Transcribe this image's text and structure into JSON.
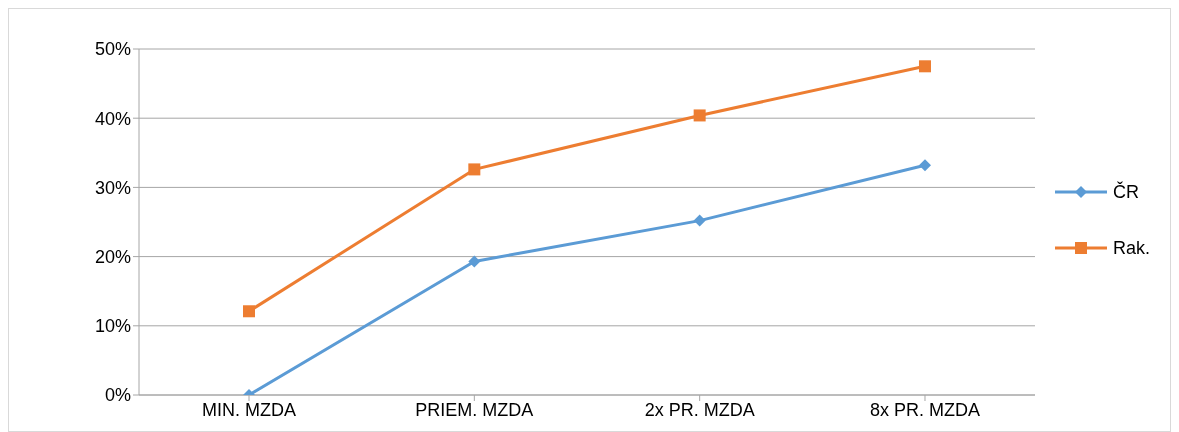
{
  "chart_data": {
    "type": "line",
    "categories": [
      "MIN. MZDA",
      "PRIEM. MZDA",
      "2x PR. MZDA",
      "8x PR. MZDA"
    ],
    "series": [
      {
        "name": "ČR",
        "color": "#5b9bd5",
        "marker": "diamond",
        "values": [
          0,
          19.3,
          25.2,
          33.2
        ]
      },
      {
        "name": "Rak.",
        "color": "#ed7d31",
        "marker": "square",
        "values": [
          12.1,
          32.6,
          40.4,
          47.5
        ]
      }
    ],
    "ylim": [
      0,
      50
    ],
    "yticks": [
      {
        "value": 0,
        "label": "0%"
      },
      {
        "value": 10,
        "label": "10%"
      },
      {
        "value": 20,
        "label": "20%"
      },
      {
        "value": 30,
        "label": "30%"
      },
      {
        "value": 40,
        "label": "40%"
      },
      {
        "value": 50,
        "label": "50%"
      }
    ],
    "grid": "y",
    "legend": "right",
    "line_style": "solid"
  }
}
